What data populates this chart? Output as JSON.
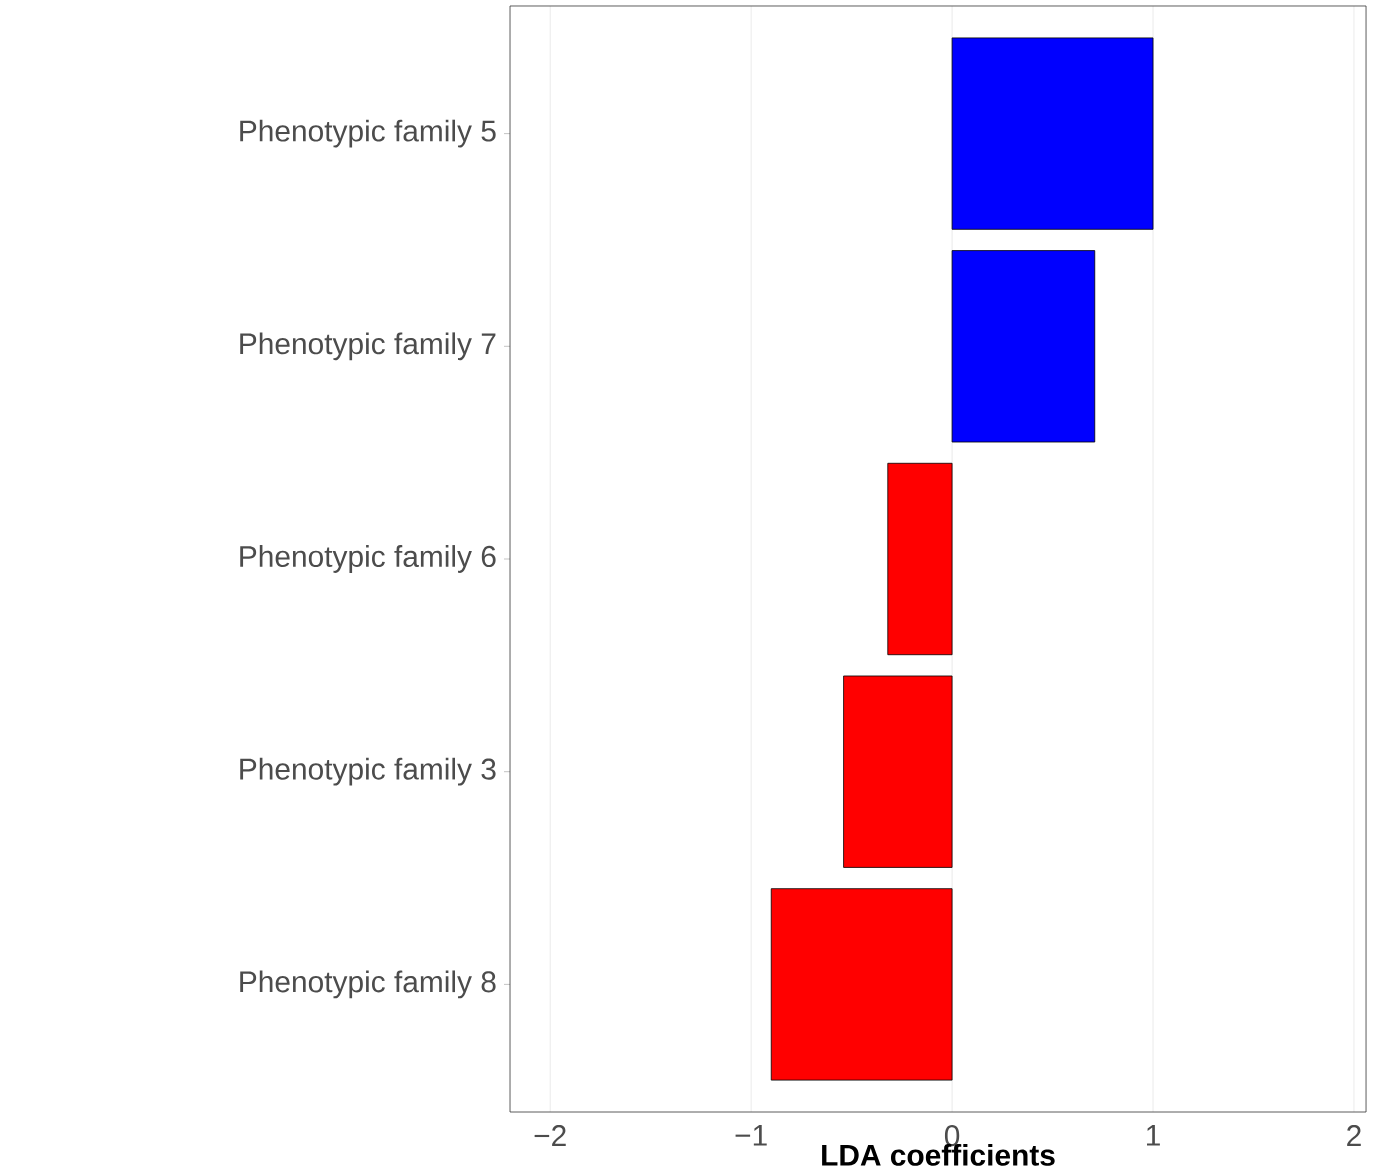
{
  "chart_data": {
    "type": "bar",
    "orientation": "horizontal",
    "xlabel": "LDA coefficients",
    "categories": [
      "Phenotypic family 5",
      "Phenotypic family 7",
      "Phenotypic family 6",
      "Phenotypic family 3",
      "Phenotypic family 8"
    ],
    "values": [
      1.0,
      0.71,
      -0.32,
      -0.54,
      -0.9
    ],
    "colors": [
      "#0000ff",
      "#0000ff",
      "#ff0000",
      "#ff0000",
      "#ff0000"
    ],
    "xlim": [
      -2.2,
      2.06
    ],
    "xticks": [
      {
        "value": -2,
        "label": "−2"
      },
      {
        "value": -1,
        "label": "−1"
      },
      0,
      1,
      2
    ],
    "grid": "x"
  }
}
